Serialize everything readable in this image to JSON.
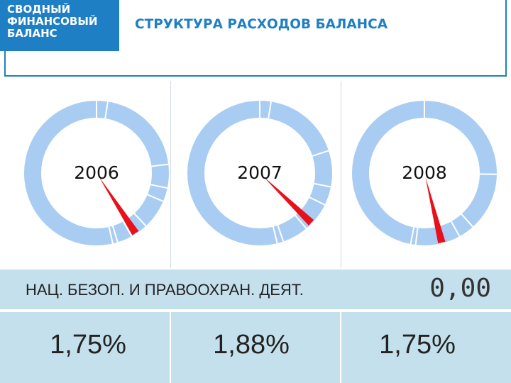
{
  "header": {
    "badge_lines": [
      "СВОДНЫЙ",
      "ФИНАНСОВЫЙ",
      "БАЛАНС"
    ],
    "title": "СТРУКТУРА РАСХОДОВ БАЛАНСА"
  },
  "colors": {
    "accent": "#1e7fc4",
    "donut": "#a9cdf2",
    "highlight": "#e8101a",
    "band": "#c4e0ec"
  },
  "chart_data": {
    "type": "pie",
    "title": "СТРУКТУРА РАСХОДОВ БАЛАНСА",
    "category_label": "НАЦ. БЕЗОП. И ПРАВООХРАН. ДЕЯТ.",
    "total_label": "0,00",
    "charts": [
      {
        "year": "2006",
        "highlight_value": 1.75,
        "highlight_label": "1,75%",
        "pointer_angle_deg": 147,
        "segment_boundaries_deg": [
          0,
          9,
          83,
          102,
          113,
          137,
          147,
          151,
          163,
          167
        ]
      },
      {
        "year": "2007",
        "highlight_value": 1.88,
        "highlight_label": "1,88%",
        "pointer_angle_deg": 134,
        "segment_boundaries_deg": [
          0,
          9,
          72,
          101,
          116,
          132,
          134,
          140,
          161,
          166
        ]
      },
      {
        "year": "2008",
        "highlight_value": 1.75,
        "highlight_label": "1,75%",
        "pointer_angle_deg": 166,
        "segment_boundaries_deg": [
          0,
          91,
          138,
          151,
          166,
          168,
          187,
          191
        ]
      }
    ]
  }
}
